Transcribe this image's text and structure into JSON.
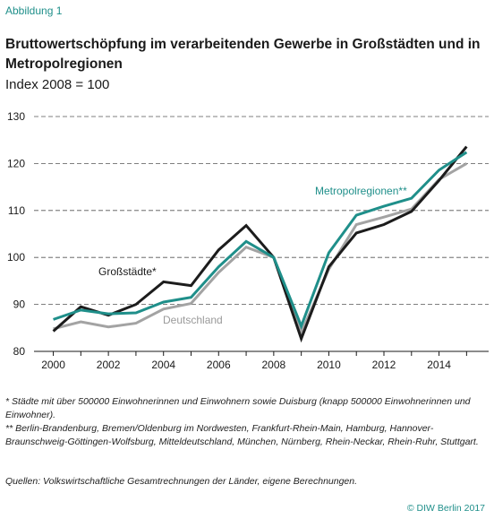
{
  "figure_label": "Abbildung 1",
  "notes": [
    "*  Städte mit über 500000 Einwohnerinnen und Einwohnern sowie Duisburg (knapp 500000 Einwohnerinnen und Einwohner).",
    "**  Berlin-Brandenburg, Bremen/Oldenburg im Nordwesten, Frankfurt-Rhein-Main, Hamburg, Hannover-Braunschweig-Göttingen-Wolfsburg, Mitteldeutschland, München, Nürnberg, Rhein-Neckar, Rhein-Ruhr, Stuttgart."
  ],
  "source": "Quellen: Volkswirtschaftliche Gesamtrechnungen der Länder, eigene Berechnungen.",
  "copyright": "© DIW Berlin 2017",
  "chart_data": {
    "type": "line",
    "title": "Bruttowertschöpfung im verarbeitenden Gewerbe in Großstädten und in Metropolregionen",
    "subtitle": "Index 2008 = 100",
    "xlabel": "",
    "ylabel": "",
    "x": [
      2000,
      2001,
      2002,
      2003,
      2004,
      2005,
      2006,
      2007,
      2008,
      2009,
      2010,
      2011,
      2012,
      2013,
      2014,
      2015
    ],
    "xlim": [
      1999.3,
      2015.8
    ],
    "ylim": [
      80,
      130
    ],
    "x_ticks": [
      "2000",
      "2002",
      "2004",
      "2006",
      "2008",
      "2010",
      "2012",
      "2014"
    ],
    "y_ticks": [
      "80",
      "90",
      "100",
      "110",
      "120",
      "130"
    ],
    "grid": "horizontal dashed",
    "series": [
      {
        "name": "Deutschland",
        "color": "#a3a3a3",
        "values": [
          84.8,
          86.3,
          85.2,
          86.0,
          89.0,
          90.2,
          96.8,
          102.2,
          100.0,
          84.0,
          97.5,
          107.0,
          108.6,
          110.3,
          116.6,
          120.0
        ]
      },
      {
        "name": "Großstädte*",
        "color": "#1c1c1c",
        "values": [
          84.3,
          89.5,
          87.7,
          90.0,
          94.8,
          94.0,
          101.6,
          106.8,
          100.0,
          82.7,
          98.0,
          105.2,
          107.0,
          109.8,
          116.4,
          123.6
        ]
      },
      {
        "name": "Metropolregionen**",
        "color": "#1f8f8a",
        "values": [
          86.8,
          88.8,
          88.0,
          88.2,
          90.5,
          91.5,
          98.0,
          103.4,
          100.0,
          85.4,
          101.0,
          109.0,
          110.9,
          112.6,
          118.6,
          122.4
        ]
      }
    ]
  }
}
